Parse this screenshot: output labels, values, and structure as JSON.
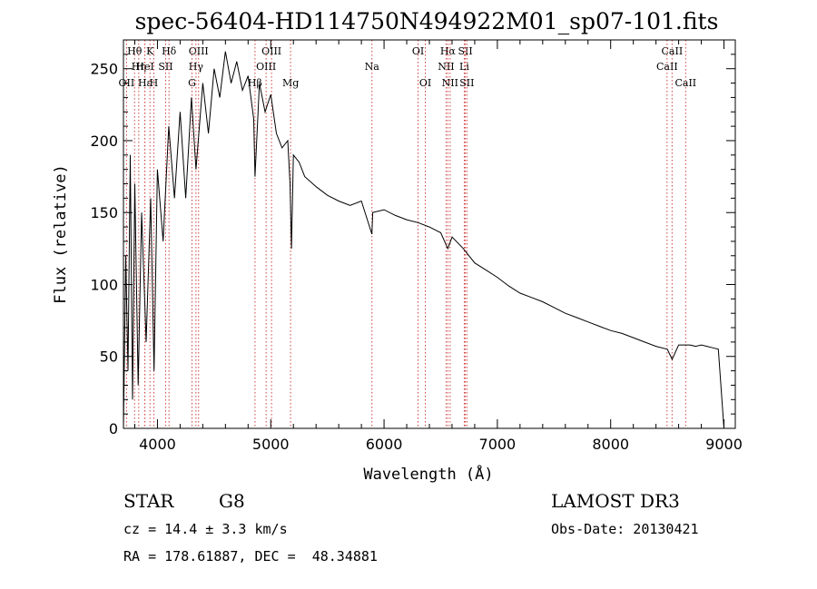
{
  "chart_data": {
    "type": "line",
    "title": "spec-56404-HD114750N494922M01_sp07-101.fits",
    "xlabel": "Wavelength (Å)",
    "ylabel": "Flux (relative)",
    "xlim": [
      3700,
      9100
    ],
    "ylim": [
      0,
      270
    ],
    "xticks": [
      4000,
      5000,
      6000,
      7000,
      8000,
      9000
    ],
    "yticks": [
      0,
      50,
      100,
      150,
      200,
      250
    ],
    "series": [
      {
        "name": "spectrum",
        "x": [
          3700,
          3720,
          3740,
          3760,
          3780,
          3800,
          3830,
          3860,
          3900,
          3940,
          3970,
          4000,
          4050,
          4100,
          4150,
          4200,
          4250,
          4300,
          4340,
          4400,
          4450,
          4500,
          4550,
          4600,
          4650,
          4700,
          4750,
          4800,
          4850,
          4861,
          4900,
          4950,
          5000,
          5050,
          5100,
          5150,
          5170,
          5183,
          5200,
          5250,
          5300,
          5400,
          5500,
          5600,
          5700,
          5800,
          5893,
          5900,
          6000,
          6100,
          6200,
          6300,
          6400,
          6500,
          6563,
          6600,
          6700,
          6800,
          6900,
          7000,
          7100,
          7200,
          7300,
          7400,
          7500,
          7600,
          7700,
          7800,
          7900,
          8000,
          8100,
          8200,
          8300,
          8400,
          8500,
          8542,
          8600,
          8700,
          8750,
          8800,
          8850,
          8900,
          8950,
          9000
        ],
        "y": [
          0,
          120,
          40,
          190,
          20,
          170,
          30,
          150,
          60,
          160,
          40,
          180,
          130,
          210,
          160,
          220,
          160,
          230,
          180,
          240,
          205,
          250,
          230,
          262,
          240,
          255,
          235,
          245,
          215,
          175,
          240,
          220,
          232,
          205,
          195,
          200,
          170,
          125,
          190,
          185,
          175,
          168,
          162,
          158,
          155,
          158,
          135,
          150,
          152,
          148,
          145,
          143,
          140,
          136,
          125,
          133,
          125,
          115,
          110,
          105,
          99,
          94,
          91,
          88,
          84,
          80,
          77,
          74,
          71,
          68,
          66,
          63,
          60,
          57,
          55,
          48,
          58,
          58,
          57,
          58,
          57,
          56,
          55,
          0
        ]
      }
    ],
    "line_ids": [
      {
        "label": "Hθ",
        "wl": 3798,
        "row": 0
      },
      {
        "label": "OII",
        "wl": 3727,
        "row": 2
      },
      {
        "label": "Hη",
        "wl": 3835,
        "row": 1
      },
      {
        "label": "HeI",
        "wl": 3889,
        "row": 1
      },
      {
        "label": "Hε",
        "wl": 3889,
        "row": 2
      },
      {
        "label": "K",
        "wl": 3934,
        "row": 0
      },
      {
        "label": "H",
        "wl": 3968,
        "row": 2
      },
      {
        "label": "SII",
        "wl": 4072,
        "row": 1
      },
      {
        "label": "Hδ",
        "wl": 4102,
        "row": 0
      },
      {
        "label": "OIII",
        "wl": 4363,
        "row": 0
      },
      {
        "label": "Hγ",
        "wl": 4340,
        "row": 1
      },
      {
        "label": "G",
        "wl": 4305,
        "row": 2
      },
      {
        "label": "Hβ",
        "wl": 4861,
        "row": 2
      },
      {
        "label": "OIII",
        "wl": 5007,
        "row": 0
      },
      {
        "label": "OIII",
        "wl": 4959,
        "row": 1
      },
      {
        "label": "Mg",
        "wl": 5175,
        "row": 2
      },
      {
        "label": "Na",
        "wl": 5893,
        "row": 1
      },
      {
        "label": "OI",
        "wl": 6300,
        "row": 0
      },
      {
        "label": "OI",
        "wl": 6364,
        "row": 2
      },
      {
        "label": "Hα",
        "wl": 6563,
        "row": 0
      },
      {
        "label": "NII",
        "wl": 6548,
        "row": 1
      },
      {
        "label": "NII",
        "wl": 6583,
        "row": 2
      },
      {
        "label": "SII",
        "wl": 6717,
        "row": 0
      },
      {
        "label": "Li",
        "wl": 6708,
        "row": 1
      },
      {
        "label": "SII",
        "wl": 6731,
        "row": 2
      },
      {
        "label": "CaII",
        "wl": 8542,
        "row": 0
      },
      {
        "label": "CaII",
        "wl": 8498,
        "row": 1
      },
      {
        "label": "CaII",
        "wl": 8662,
        "row": 2
      }
    ]
  },
  "info": {
    "object_type": "STAR",
    "subclass": "G8",
    "survey": "LAMOST DR3",
    "cz": "cz = 14.4 ± 3.3 km/s",
    "obs_date": "Obs-Date: 20130421",
    "coords": "RA = 178.61887, DEC =  48.34881"
  }
}
